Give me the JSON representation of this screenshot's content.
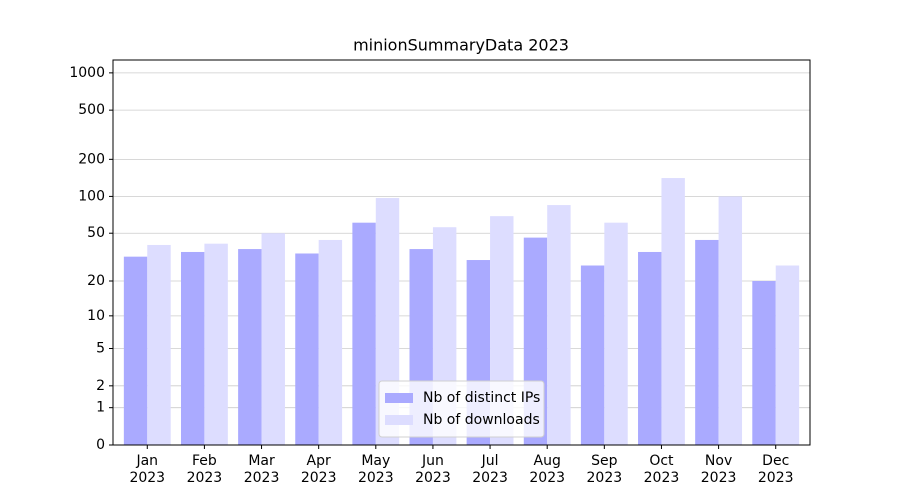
{
  "chart_data": {
    "type": "bar",
    "title": "minionSummaryData 2023",
    "categories": [
      [
        "Jan",
        "2023"
      ],
      [
        "Feb",
        "2023"
      ],
      [
        "Mar",
        "2023"
      ],
      [
        "Apr",
        "2023"
      ],
      [
        "May",
        "2023"
      ],
      [
        "Jun",
        "2023"
      ],
      [
        "Jul",
        "2023"
      ],
      [
        "Aug",
        "2023"
      ],
      [
        "Sep",
        "2023"
      ],
      [
        "Oct",
        "2023"
      ],
      [
        "Nov",
        "2023"
      ],
      [
        "Dec",
        "2023"
      ]
    ],
    "series": [
      {
        "name": "Nb of distinct IPs",
        "color": "#aaaaff",
        "values": [
          32,
          35,
          37,
          34,
          61,
          37,
          30,
          46,
          27,
          35,
          44,
          20
        ]
      },
      {
        "name": "Nb of downloads",
        "color": "#ddddff",
        "values": [
          40,
          41,
          50,
          44,
          97,
          56,
          69,
          85,
          61,
          141,
          100,
          27
        ]
      }
    ],
    "yscale": "log1p",
    "ylim": [
      0,
      1270
    ],
    "yticks": [
      0,
      1,
      2,
      5,
      10,
      20,
      50,
      100,
      200,
      500,
      1000
    ],
    "grid": true,
    "legend": "lower center"
  }
}
